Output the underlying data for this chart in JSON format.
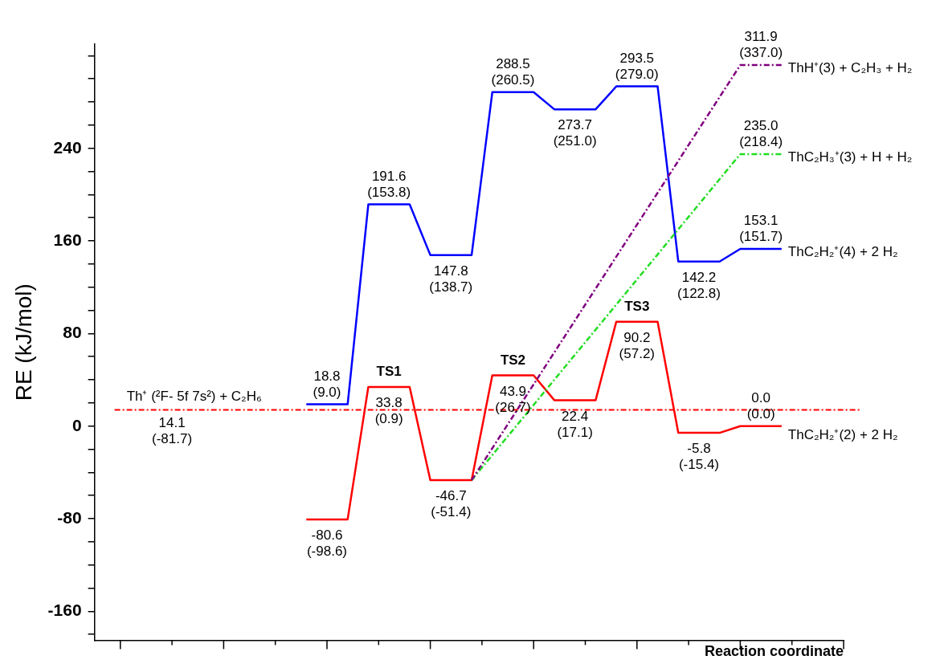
{
  "chart_data": {
    "type": "line",
    "xlabel": "Reaction coordinate",
    "ylabel": "RE (kJ/mol)",
    "categories": [
      null,
      null,
      null,
      null,
      null,
      null,
      null,
      null,
      null,
      null,
      null,
      null,
      null,
      null,
      null,
      null,
      null,
      null,
      null,
      null,
      null,
      null,
      null,
      null,
      null,
      null,
      null,
      null,
      null,
      null,
      null,
      null,
      null,
      null,
      null
    ],
    "ylim": [
      -185,
      330
    ],
    "yticks": [
      {
        "value": -180,
        "label": null
      },
      -160,
      {
        "value": -140,
        "label": null
      },
      {
        "value": -120,
        "label": null
      },
      {
        "value": -100,
        "label": null
      },
      -80,
      {
        "value": -60,
        "label": null
      },
      {
        "value": -40,
        "label": null
      },
      {
        "value": -20,
        "label": null
      },
      0,
      {
        "value": 20,
        "label": null
      },
      {
        "value": 40,
        "label": null
      },
      {
        "value": 60,
        "label": null
      },
      80,
      {
        "value": 100,
        "label": null
      },
      {
        "value": 120,
        "label": null
      },
      {
        "value": 140,
        "label": null
      },
      160,
      {
        "value": 180,
        "label": null
      },
      {
        "value": 200,
        "label": null
      },
      {
        "value": 220,
        "label": null
      },
      240,
      {
        "value": 260,
        "label": null
      },
      {
        "value": 280,
        "label": null
      },
      {
        "value": 300,
        "label": null
      },
      {
        "value": 320,
        "label": null
      }
    ],
    "grid": false,
    "legend": false,
    "marker": "none",
    "tick_labels": "y",
    "series": [
      {
        "name": "ThC₂H₂⁺(2) + 2 H₂",
        "color": "#ff0000",
        "line_style": "solid",
        "values": [
          null,
          null,
          null,
          null,
          null,
          null,
          null,
          null,
          null,
          -80.6,
          -80.6,
          -80.6,
          33.8,
          33.8,
          33.8,
          -46.7,
          -46.7,
          -46.7,
          43.9,
          43.9,
          43.9,
          22.4,
          22.4,
          22.4,
          90.2,
          90.2,
          90.2,
          -5.8,
          -5.8,
          -5.8,
          0.0,
          0.0,
          0.0,
          null,
          null
        ],
        "value_labels": [
          null,
          null,
          null,
          null,
          null,
          null,
          null,
          null,
          null,
          null,
          "-80.6\n(-98.6)",
          null,
          null,
          "33.8\n(0.9)",
          null,
          null,
          "-46.7\n(-51.4)",
          null,
          null,
          "43.9\n(26.7)",
          null,
          null,
          "22.4\n(17.1)",
          null,
          null,
          "90.2\n(57.2)",
          null,
          null,
          "-5.8\n(-15.4)",
          null,
          null,
          "0.0\n(0.0)",
          null,
          null,
          null
        ]
      },
      {
        "name": "ThC₂H₂⁺(4) + 2 H₂",
        "color": "#0000ff",
        "line_style": "solid",
        "values": [
          null,
          null,
          null,
          null,
          null,
          null,
          null,
          null,
          null,
          18.8,
          18.8,
          18.8,
          191.6,
          191.6,
          191.6,
          147.8,
          147.8,
          147.8,
          288.5,
          288.5,
          288.5,
          273.7,
          273.7,
          273.7,
          293.5,
          293.5,
          293.5,
          142.2,
          142.2,
          142.2,
          153.1,
          153.1,
          153.1,
          null,
          null
        ],
        "value_labels": [
          null,
          null,
          null,
          null,
          null,
          null,
          null,
          null,
          null,
          null,
          "18.8\n(9.0)",
          null,
          null,
          "191.6\n(153.8)",
          null,
          null,
          "147.8\n(138.7)",
          null,
          null,
          "288.5\n(260.5)",
          null,
          null,
          "273.7\n(251.0)",
          null,
          null,
          "293.5\n(279.0)",
          null,
          null,
          "142.2\n(122.8)",
          null,
          null,
          "153.1\n(151.7)",
          null,
          null,
          null
        ]
      },
      {
        "name": "ThC₂H₃⁺(3) + H + H₂",
        "color": "#22dd22",
        "line_style": "dashed",
        "values": [
          null,
          null,
          null,
          null,
          null,
          null,
          null,
          null,
          null,
          null,
          null,
          null,
          null,
          null,
          null,
          null,
          null,
          -46.7,
          null,
          null,
          null,
          null,
          null,
          null,
          null,
          null,
          null,
          null,
          null,
          null,
          235.0,
          235.0,
          235.0,
          null,
          null
        ],
        "value_labels": [
          null,
          null,
          null,
          null,
          null,
          null,
          null,
          null,
          null,
          null,
          null,
          null,
          null,
          null,
          null,
          null,
          null,
          null,
          null,
          null,
          null,
          null,
          null,
          null,
          null,
          null,
          null,
          null,
          null,
          null,
          null,
          "235.0\n(218.4)",
          null,
          null,
          null
        ]
      },
      {
        "name": "ThH⁺(3) + C₂H₃ + H₂",
        "color": "#800080",
        "line_style": "dashed",
        "values": [
          null,
          null,
          null,
          null,
          null,
          null,
          null,
          null,
          null,
          null,
          null,
          null,
          null,
          null,
          null,
          null,
          null,
          -46.7,
          null,
          null,
          null,
          null,
          null,
          null,
          null,
          null,
          null,
          null,
          null,
          null,
          311.9,
          311.9,
          311.9,
          null,
          null
        ],
        "value_labels": [
          null,
          null,
          null,
          null,
          null,
          null,
          null,
          null,
          null,
          null,
          null,
          null,
          null,
          null,
          null,
          null,
          null,
          null,
          null,
          null,
          null,
          null,
          null,
          null,
          null,
          null,
          null,
          null,
          null,
          null,
          null,
          "311.9\n(337.0)",
          null,
          null,
          null
        ]
      }
    ],
    "ref_lines": [
      {
        "axis": "y",
        "value": 14.1,
        "label": "Th⁺ (²F- 5f 7s²) + C₂H₆",
        "color": "#ff0000",
        "line_style": "dashed"
      }
    ],
    "annotations": [
      {
        "text": "14.1\n(-81.7)",
        "y": 14.1
      },
      {
        "text": "TS1",
        "y": 33.8
      },
      {
        "text": "TS2",
        "y": 43.9
      },
      {
        "text": "TS3",
        "y": 90.2
      }
    ]
  }
}
